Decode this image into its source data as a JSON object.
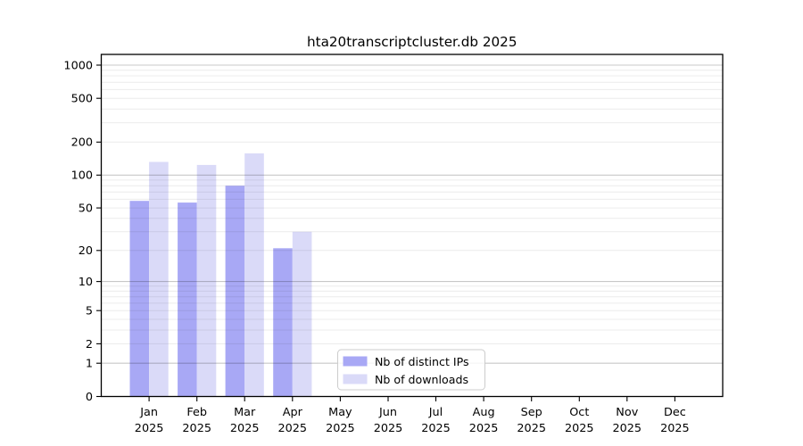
{
  "chart_data": {
    "type": "bar",
    "title": "hta20transcriptcluster.db 2025",
    "categories": [
      {
        "month": "Jan",
        "year": "2025"
      },
      {
        "month": "Feb",
        "year": "2025"
      },
      {
        "month": "Mar",
        "year": "2025"
      },
      {
        "month": "Apr",
        "year": "2025"
      },
      {
        "month": "May",
        "year": "2025"
      },
      {
        "month": "Jun",
        "year": "2025"
      },
      {
        "month": "Jul",
        "year": "2025"
      },
      {
        "month": "Aug",
        "year": "2025"
      },
      {
        "month": "Sep",
        "year": "2025"
      },
      {
        "month": "Oct",
        "year": "2025"
      },
      {
        "month": "Nov",
        "year": "2025"
      },
      {
        "month": "Dec",
        "year": "2025"
      }
    ],
    "series": [
      {
        "name": "Nb of distinct IPs",
        "color": "#a8a8f5",
        "values": [
          58,
          56,
          80,
          21,
          0,
          0,
          0,
          0,
          0,
          0,
          0,
          0
        ]
      },
      {
        "name": "Nb of downloads",
        "color": "#dadaf8",
        "values": [
          132,
          124,
          158,
          30,
          0,
          0,
          0,
          0,
          0,
          0,
          0,
          0
        ]
      }
    ],
    "y_scale": "log1p",
    "ylim": [
      0,
      1000
    ],
    "y_ticks": [
      0,
      1,
      2,
      5,
      10,
      20,
      50,
      100,
      200,
      500,
      1000
    ],
    "grid": "both",
    "legend_position": "inside-bottom-center",
    "colors": {
      "major_grid": "#c8c8c8",
      "minor_grid": "#ececec",
      "axis": "#000000",
      "legend_border": "#cccccc"
    }
  }
}
